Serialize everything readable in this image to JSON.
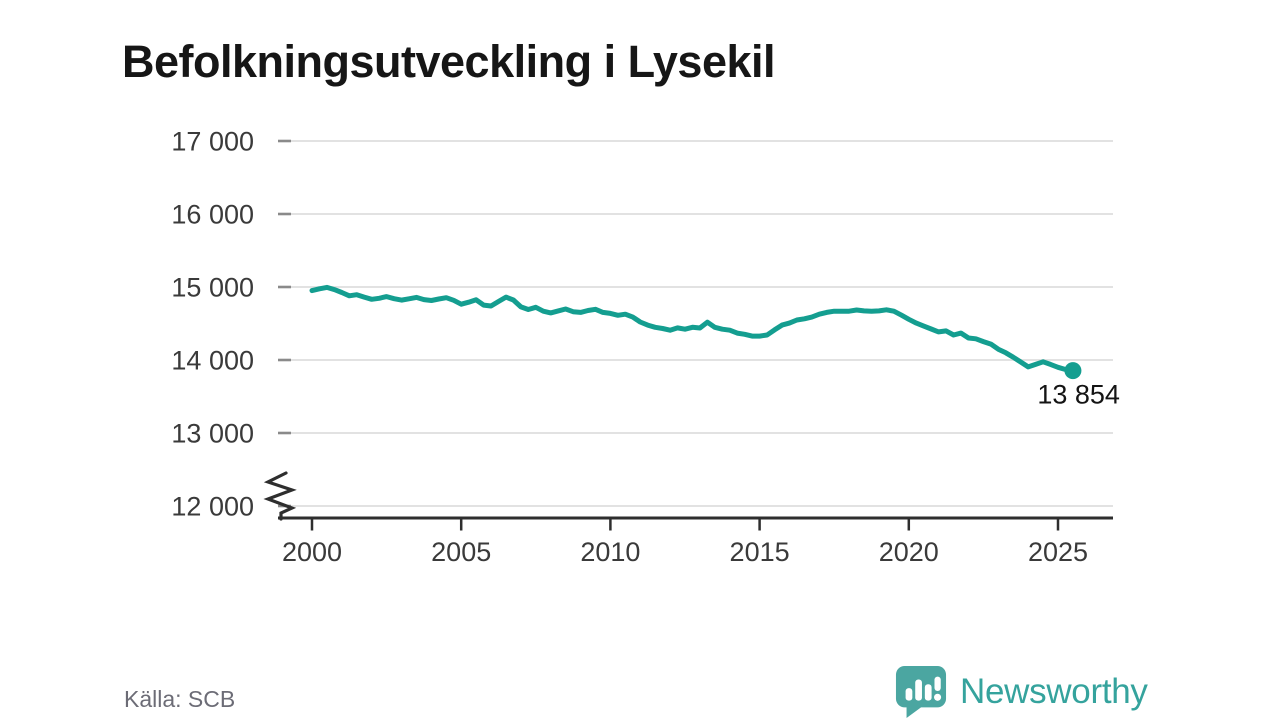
{
  "title": "Befolkningsutveckling i Lysekil",
  "source": "Källa: SCB",
  "logo": {
    "name": "Newsworthy"
  },
  "colors": {
    "line": "#149E90",
    "logo_icon": "#4BA6A1",
    "logo_text": "#35A39D",
    "grid": "#E2E2E2",
    "grid_cap": "#8A8A8A",
    "axis": "#2E2E2E",
    "tick_text": "#3A3A3A",
    "title_text": "#161616",
    "source_text": "#6C6C76",
    "end_label_text": "#141414"
  },
  "chart_data": {
    "type": "line",
    "title": "Befolkningsutveckling i Lysekil",
    "xlabel": "",
    "ylabel": "",
    "x_start": 2000,
    "x_step": 0.25,
    "x_end": 2025.5,
    "ylim": [
      12000,
      17000
    ],
    "axis_break": true,
    "grid": true,
    "legend_position": "none",
    "yticks": [
      {
        "v": 12000,
        "label": "12 000"
      },
      {
        "v": 13000,
        "label": "13 000"
      },
      {
        "v": 14000,
        "label": "14 000"
      },
      {
        "v": 15000,
        "label": "15 000"
      },
      {
        "v": 16000,
        "label": "16 000"
      },
      {
        "v": 17000,
        "label": "17 000"
      }
    ],
    "xticks": [
      {
        "v": 2000,
        "label": "2000"
      },
      {
        "v": 2005,
        "label": "2005"
      },
      {
        "v": 2010,
        "label": "2010"
      },
      {
        "v": 2015,
        "label": "2015"
      },
      {
        "v": 2020,
        "label": "2020"
      },
      {
        "v": 2025,
        "label": "2025"
      }
    ],
    "series": [
      {
        "name": "Befolkning",
        "values": [
          14950,
          14975,
          14995,
          14965,
          14925,
          14880,
          14895,
          14862,
          14832,
          14845,
          14868,
          14840,
          14820,
          14838,
          14858,
          14828,
          14815,
          14836,
          14854,
          14818,
          14765,
          14792,
          14825,
          14752,
          14740,
          14802,
          14862,
          14822,
          14728,
          14692,
          14722,
          14668,
          14645,
          14672,
          14698,
          14662,
          14652,
          14678,
          14695,
          14652,
          14638,
          14612,
          14628,
          14588,
          14520,
          14478,
          14448,
          14432,
          14408,
          14440,
          14422,
          14448,
          14438,
          14518,
          14448,
          14422,
          14408,
          14368,
          14352,
          14328,
          14328,
          14342,
          14412,
          14478,
          14505,
          14548,
          14565,
          14588,
          14628,
          14652,
          14668,
          14668,
          14668,
          14685,
          14672,
          14668,
          14672,
          14688,
          14668,
          14615,
          14558,
          14505,
          14465,
          14425,
          14385,
          14398,
          14342,
          14368,
          14302,
          14290,
          14252,
          14218,
          14148,
          14098,
          14038,
          13972,
          13905,
          13940,
          13975,
          13940,
          13900,
          13870,
          13854
        ]
      }
    ],
    "end_label": "13 854",
    "last_value": 13854
  }
}
